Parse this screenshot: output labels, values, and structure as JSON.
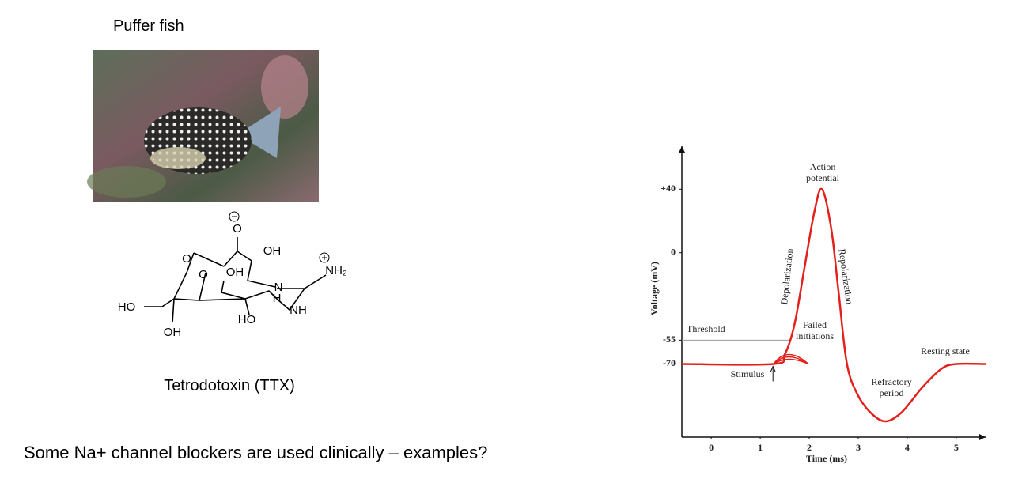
{
  "slide": {
    "fish_title": "Puffer fish",
    "molecule_name": "Tetrodotoxin (TTX)",
    "question": "Some Na+ channel blockers are used clinically – examples?"
  },
  "molecule": {
    "labels": [
      "O",
      "OH",
      "O",
      "O",
      "OH",
      "N",
      "H",
      "NH₂",
      "NH",
      "HO",
      "HO",
      "OH"
    ]
  },
  "chart_data": {
    "type": "line",
    "x_label": "Time (ms)",
    "y_label": "Voltage (mV)",
    "x": [
      -0.6,
      1.26,
      1.5,
      1.7,
      1.9,
      2.1,
      2.26,
      2.45,
      2.6,
      2.77,
      3.0,
      3.3,
      3.58,
      3.9,
      4.3,
      4.7,
      5.0,
      5.6
    ],
    "series": [
      {
        "color": "#e3211c",
        "values": [
          -70,
          -70,
          -64,
          -45,
          -10,
          25,
          40,
          15,
          -25,
          -70,
          -90,
          -102,
          -106,
          -100,
          -85,
          -73,
          -70,
          -70
        ]
      }
    ],
    "xlim": [
      -0.6,
      5.6
    ],
    "ylim": [
      -116,
      67
    ],
    "xticks": [
      0,
      1,
      2,
      3,
      4,
      5
    ],
    "yticks": [
      {
        "value": 40,
        "label": "+40"
      },
      0,
      -55,
      -70
    ],
    "annotations": {
      "action_potential": [
        "Action",
        "potential"
      ],
      "depolarization": "Depolarization",
      "repolarization": "Repolarization",
      "threshold": "Threshold",
      "failed_initiations": [
        "Failed",
        "initiations"
      ],
      "stimulus": "Stimulus",
      "resting_state": "Resting state",
      "refractory_period": [
        "Refractory",
        "period"
      ]
    }
  }
}
